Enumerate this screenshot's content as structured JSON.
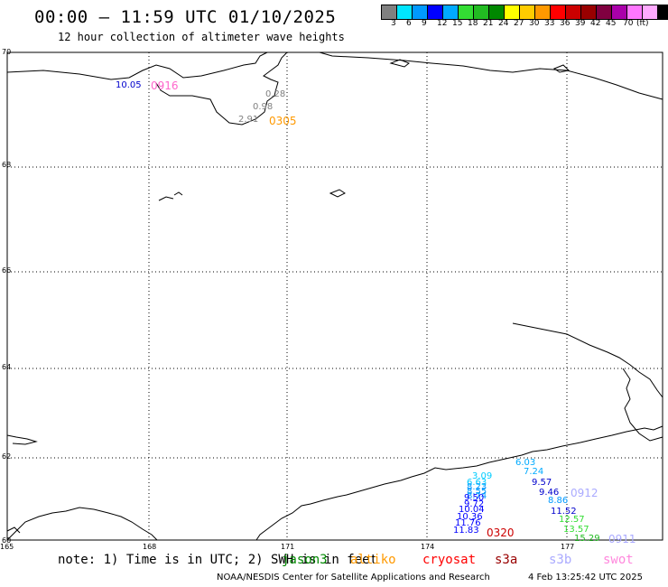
{
  "header": {
    "title": "00:00 – 11:59 UTC 01/10/2025",
    "subtitle": "12 hour collection of altimeter wave heights"
  },
  "colorbar": {
    "unit": "(ft)",
    "colors": [
      "#808080",
      "#00e5ff",
      "#0099ff",
      "#0000ff",
      "#00aaff",
      "#33dd33",
      "#22bb22",
      "#008800",
      "#ffff00",
      "#ffcc00",
      "#ff9900",
      "#ff0000",
      "#cc0000",
      "#990000",
      "#800040",
      "#aa00aa",
      "#ff77ff",
      "#ffaaff",
      "#000000"
    ],
    "labels": [
      "3",
      "6",
      "9",
      "12",
      "15",
      "18",
      "21",
      "24",
      "27",
      "30",
      "33",
      "36",
      "39",
      "42",
      "45",
      "70"
    ]
  },
  "map": {
    "lat_labels": [
      "70",
      "68",
      "66",
      "64",
      "62",
      "60"
    ],
    "lon_labels": [
      "165",
      "168",
      "171",
      "174",
      "177"
    ],
    "observations": [
      {
        "text": "10.05",
        "color": "#0000cc"
      },
      {
        "text": "0.28",
        "color": "#808080"
      },
      {
        "text": "0.98",
        "color": "#808080"
      },
      {
        "text": "2.91",
        "color": "#808080"
      },
      {
        "text": "3.09",
        "color": "#00ccff"
      },
      {
        "text": "6.63",
        "color": "#00ccff"
      },
      {
        "text": "8.23",
        "color": "#0099ff"
      },
      {
        "text": "8.55",
        "color": "#0099ff"
      },
      {
        "text": "8.74",
        "color": "#0099ff"
      },
      {
        "text": "9.50",
        "color": "#0000ff"
      },
      {
        "text": "9.72",
        "color": "#0000ff"
      },
      {
        "text": "10.04",
        "color": "#0000ff"
      },
      {
        "text": "10.36",
        "color": "#0000ff"
      },
      {
        "text": "11.76",
        "color": "#0000ff"
      },
      {
        "text": "11.83",
        "color": "#0000ff"
      },
      {
        "text": "6.03",
        "color": "#00aaff"
      },
      {
        "text": "7.24",
        "color": "#00aaff"
      },
      {
        "text": "9.57",
        "color": "#0000cc"
      },
      {
        "text": "9.46",
        "color": "#0000cc"
      },
      {
        "text": "8.86",
        "color": "#0099ff"
      },
      {
        "text": "11.52",
        "color": "#0000cc"
      },
      {
        "text": "12.57",
        "color": "#33dd33"
      },
      {
        "text": "13.57",
        "color": "#33dd33"
      },
      {
        "text": "15.29",
        "color": "#22bb22"
      }
    ],
    "time_tags": [
      {
        "text": "0916",
        "color": "#ff66cc"
      },
      {
        "text": "0305",
        "color": "#ff9900"
      },
      {
        "text": "0320",
        "color": "#cc0000"
      },
      {
        "text": "0912",
        "color": "#aaaaff"
      },
      {
        "text": "0911",
        "color": "#aaaaff"
      }
    ]
  },
  "footer": {
    "note": "note: 1) Time is in UTC; 2) SWH is in feet",
    "missions": [
      {
        "name": "jason3",
        "color": "#008800"
      },
      {
        "name": "altiko",
        "color": "#ff9900"
      },
      {
        "name": "cryosat",
        "color": "#ff0000"
      },
      {
        "name": "s3a",
        "color": "#990000"
      },
      {
        "name": "s3b",
        "color": "#aaaaff"
      },
      {
        "name": "swot",
        "color": "#ff88dd"
      }
    ],
    "credit": "NOAA/NESDIS Center for Satellite Applications and Research",
    "timestamp": "4 Feb 13:25:42 UTC 2025"
  }
}
